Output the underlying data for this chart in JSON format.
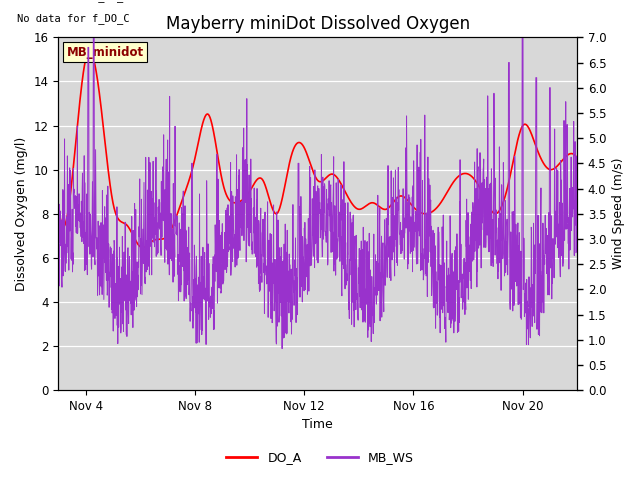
{
  "title": "Mayberry miniDot Dissolved Oxygen",
  "xlabel": "Time",
  "ylabel_left": "Dissolved Oxygen (mg/l)",
  "ylabel_right": "Wind Speed (m/s)",
  "annotation_lines": [
    "No data for f_DO_B",
    "No data for f_DO_C"
  ],
  "legend_label": "MB_minidot",
  "legend_label_color": "#8B0000",
  "legend_bg_color": "#FFFFCC",
  "series_labels": [
    "DO_A",
    "MB_WS"
  ],
  "do_color": "#FF0000",
  "ws_color": "#9932CC",
  "ylim_left": [
    0,
    16
  ],
  "ylim_right": [
    0.0,
    7.0
  ],
  "yticks_left": [
    0,
    2,
    4,
    6,
    8,
    10,
    12,
    14,
    16
  ],
  "yticks_right": [
    0.0,
    0.5,
    1.0,
    1.5,
    2.0,
    2.5,
    3.0,
    3.5,
    4.0,
    4.5,
    5.0,
    5.5,
    6.0,
    6.5,
    7.0
  ],
  "xtick_labels": [
    "Nov 4",
    "Nov 8",
    "Nov 12",
    "Nov 16",
    "Nov 20"
  ],
  "xtick_days": [
    4,
    8,
    12,
    16,
    20
  ],
  "xlim": [
    3,
    22
  ],
  "title_fontsize": 12,
  "axis_fontsize": 9,
  "tick_fontsize": 8.5
}
